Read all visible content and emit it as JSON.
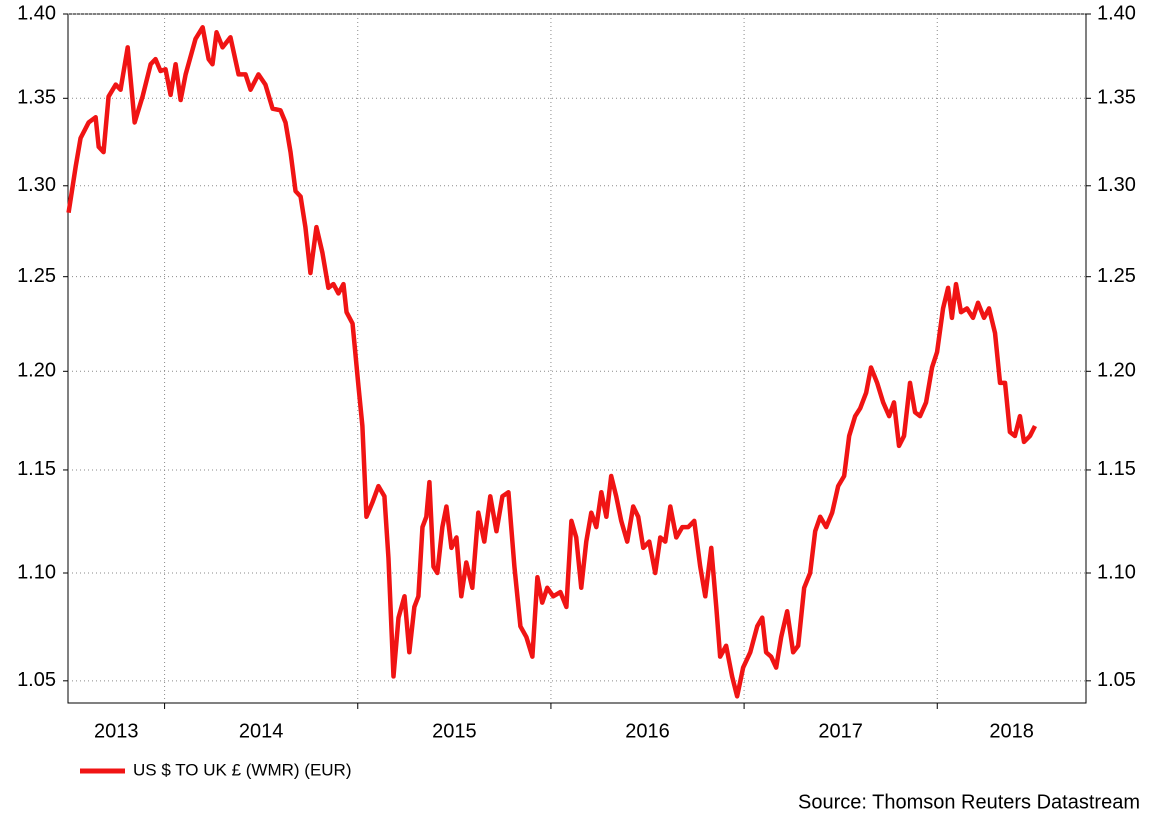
{
  "chart_data": {
    "type": "line",
    "log_y": true,
    "grid": true,
    "legend": "bottom-left",
    "source": "Source: Thomson Reuters Datastream",
    "year_labels": [
      "2013",
      "2014",
      "2015",
      "2016",
      "2017",
      "2018"
    ],
    "xlim": [
      2013.5,
      2018.77
    ],
    "xticks": [
      2014,
      2015,
      2016,
      2017,
      2018
    ],
    "ylim": [
      1.04,
      1.4
    ],
    "yticks": [
      1.05,
      {
        "value": 1.1,
        "label": "1.10"
      },
      1.15,
      {
        "value": 1.2,
        "label": "1.20"
      },
      1.25,
      {
        "value": 1.3,
        "label": "1.30"
      },
      1.35,
      {
        "value": 1.4,
        "label": "1.40"
      }
    ],
    "y2lim": [
      1.04,
      1.4
    ],
    "y2ticks": [
      1.05,
      {
        "value": 1.1,
        "label": "1.10"
      },
      1.15,
      {
        "value": 1.2,
        "label": "1.20"
      },
      1.25,
      {
        "value": 1.3,
        "label": "1.30"
      },
      1.35,
      {
        "value": 1.4,
        "label": "1.40"
      }
    ],
    "x": [
      2013.503,
      2013.54,
      2013.565,
      2013.607,
      2013.643,
      2013.659,
      2013.684,
      2013.71,
      2013.747,
      2013.772,
      2013.809,
      2013.845,
      2013.886,
      2013.928,
      2013.953,
      2013.979,
      2014.005,
      2014.031,
      2014.057,
      2014.083,
      2014.109,
      2014.16,
      2014.197,
      2014.228,
      2014.248,
      2014.269,
      2014.3,
      2014.341,
      2014.383,
      2014.419,
      2014.445,
      2014.486,
      2014.522,
      2014.559,
      2014.6,
      2014.626,
      2014.652,
      2014.678,
      2014.704,
      2014.729,
      2014.755,
      2014.786,
      2014.817,
      2014.848,
      2014.874,
      2014.9,
      2014.926,
      2014.942,
      2014.973,
      2015.004,
      2015.024,
      2015.045,
      2015.076,
      2015.107,
      2015.138,
      2015.159,
      2015.185,
      2015.211,
      2015.242,
      2015.267,
      2015.293,
      2015.314,
      2015.335,
      2015.355,
      2015.371,
      2015.392,
      2015.412,
      2015.438,
      2015.459,
      2015.485,
      2015.511,
      2015.536,
      2015.562,
      2015.593,
      2015.624,
      2015.655,
      2015.686,
      2015.718,
      2015.749,
      2015.78,
      2015.811,
      2015.842,
      2015.873,
      2015.904,
      2015.93,
      2015.955,
      2015.981,
      2016.012,
      2016.049,
      2016.08,
      2016.106,
      2016.131,
      2016.157,
      2016.183,
      2016.209,
      2016.235,
      2016.261,
      2016.287,
      2016.312,
      2016.338,
      2016.364,
      2016.395,
      2016.426,
      2016.452,
      2016.478,
      2016.509,
      2016.54,
      2016.566,
      2016.592,
      2016.618,
      2016.649,
      2016.68,
      2016.711,
      2016.742,
      2016.773,
      2016.799,
      2016.83,
      2016.856,
      2016.876,
      2016.907,
      2016.938,
      2016.964,
      2016.995,
      2017.032,
      2017.068,
      2017.094,
      2017.114,
      2017.14,
      2017.166,
      2017.192,
      2017.223,
      2017.254,
      2017.28,
      2017.311,
      2017.342,
      2017.368,
      2017.394,
      2017.425,
      2017.456,
      2017.487,
      2017.518,
      2017.544,
      2017.575,
      2017.601,
      2017.632,
      2017.657,
      2017.689,
      2017.72,
      2017.751,
      2017.776,
      2017.802,
      2017.828,
      2017.859,
      2017.885,
      2017.911,
      2017.942,
      2017.973,
      2017.999,
      2018.03,
      2018.056,
      2018.076,
      2018.097,
      2018.123,
      2018.154,
      2018.185,
      2018.211,
      2018.242,
      2018.268,
      2018.299,
      2018.325,
      2018.351,
      2018.376,
      2018.402,
      2018.428,
      2018.449,
      2018.48,
      2018.506
    ],
    "series": [
      {
        "name": "US $ TO UK £ (WMR) (EUR)",
        "color": "#f01414",
        "values": [
          1.285,
          1.311,
          1.327,
          1.336,
          1.339,
          1.322,
          1.319,
          1.351,
          1.358,
          1.355,
          1.38,
          1.336,
          1.351,
          1.37,
          1.373,
          1.366,
          1.367,
          1.352,
          1.37,
          1.349,
          1.364,
          1.385,
          1.392,
          1.373,
          1.37,
          1.389,
          1.38,
          1.386,
          1.364,
          1.364,
          1.355,
          1.364,
          1.358,
          1.344,
          1.343,
          1.336,
          1.319,
          1.297,
          1.294,
          1.277,
          1.252,
          1.277,
          1.263,
          1.244,
          1.246,
          1.241,
          1.246,
          1.231,
          1.225,
          1.192,
          1.172,
          1.127,
          1.134,
          1.142,
          1.137,
          1.107,
          1.052,
          1.079,
          1.089,
          1.063,
          1.084,
          1.089,
          1.122,
          1.127,
          1.144,
          1.103,
          1.1,
          1.122,
          1.132,
          1.112,
          1.117,
          1.089,
          1.105,
          1.093,
          1.129,
          1.115,
          1.137,
          1.12,
          1.137,
          1.139,
          1.103,
          1.075,
          1.07,
          1.061,
          1.098,
          1.086,
          1.093,
          1.089,
          1.091,
          1.084,
          1.125,
          1.117,
          1.093,
          1.115,
          1.129,
          1.122,
          1.139,
          1.127,
          1.147,
          1.137,
          1.125,
          1.115,
          1.132,
          1.127,
          1.112,
          1.115,
          1.1,
          1.117,
          1.115,
          1.132,
          1.117,
          1.122,
          1.122,
          1.125,
          1.103,
          1.089,
          1.112,
          1.084,
          1.061,
          1.066,
          1.052,
          1.043,
          1.056,
          1.063,
          1.075,
          1.079,
          1.063,
          1.061,
          1.056,
          1.07,
          1.082,
          1.063,
          1.066,
          1.093,
          1.1,
          1.12,
          1.127,
          1.122,
          1.129,
          1.142,
          1.147,
          1.167,
          1.177,
          1.181,
          1.189,
          1.202,
          1.194,
          1.184,
          1.177,
          1.184,
          1.162,
          1.167,
          1.194,
          1.179,
          1.177,
          1.184,
          1.202,
          1.21,
          1.233,
          1.244,
          1.228,
          1.246,
          1.231,
          1.233,
          1.228,
          1.236,
          1.228,
          1.233,
          1.22,
          1.194,
          1.194,
          1.169,
          1.167,
          1.177,
          1.164,
          1.167,
          1.172
        ]
      }
    ]
  }
}
